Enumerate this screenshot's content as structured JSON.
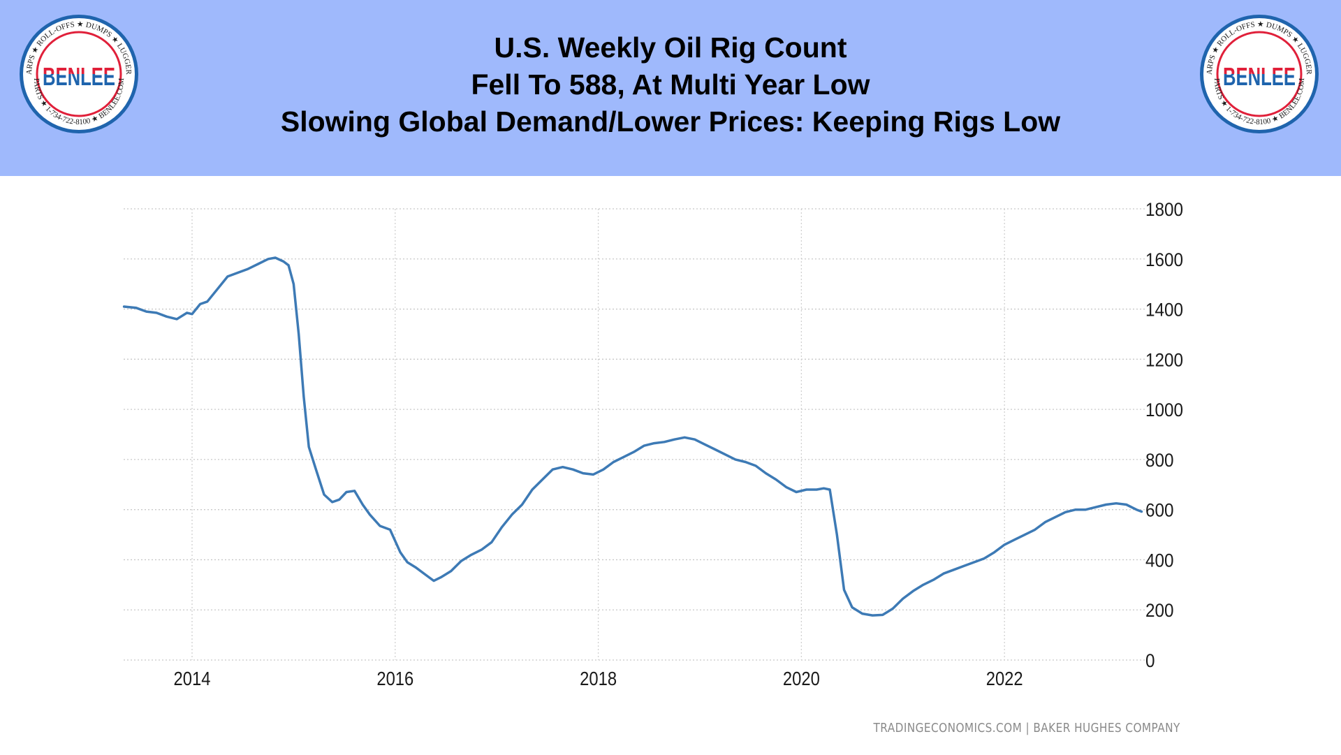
{
  "header": {
    "title_lines": [
      "U.S. Weekly Oil Rig Count",
      "Fell To 588, At Multi Year Low",
      "Slowing Global Demand/Lower Prices: Keeping Rigs Low"
    ],
    "background_color": "#9fb9fc"
  },
  "logo": {
    "brand": "BENLEE",
    "ring_text_top": "TARPS ★ ROLL-OFFS ★ DUMPS ★ LUGGERS",
    "ring_text_bottom": "PARTS ★ 1-734-722-8100 ★ BENLEE.COM",
    "colors": {
      "red": "#e0203a",
      "blue": "#1f64ad"
    }
  },
  "footer": {
    "source": "TRADINGECONOMICS.COM  |  BAKER HUGHES COMPANY"
  },
  "chart_data": {
    "type": "line",
    "title": "U.S. Weekly Oil Rig Count",
    "xlabel": "",
    "ylabel": "",
    "x_ticks": [
      "2014",
      "2016",
      "2018",
      "2020",
      "2022"
    ],
    "y_ticks": [
      "0",
      "200",
      "400",
      "600",
      "800",
      "1000",
      "1200",
      "1400",
      "1600",
      "1800"
    ],
    "xlim": [
      2013.33,
      2023.35
    ],
    "ylim": [
      0,
      1800
    ],
    "grid": true,
    "y_axis_position": "right",
    "line_color": "#3d7ab5",
    "series": [
      {
        "name": "Oil Rig Count",
        "x": [
          2013.33,
          2013.45,
          2013.55,
          2013.65,
          2013.75,
          2013.85,
          2013.95,
          2014.0,
          2014.08,
          2014.15,
          2014.25,
          2014.35,
          2014.45,
          2014.55,
          2014.65,
          2014.75,
          2014.82,
          2014.9,
          2014.95,
          2015.0,
          2015.05,
          2015.1,
          2015.15,
          2015.22,
          2015.3,
          2015.38,
          2015.45,
          2015.52,
          2015.6,
          2015.68,
          2015.75,
          2015.85,
          2015.95,
          2016.05,
          2016.12,
          2016.2,
          2016.3,
          2016.38,
          2016.45,
          2016.55,
          2016.65,
          2016.75,
          2016.85,
          2016.95,
          2017.05,
          2017.15,
          2017.25,
          2017.35,
          2017.45,
          2017.55,
          2017.65,
          2017.75,
          2017.85,
          2017.95,
          2018.05,
          2018.15,
          2018.25,
          2018.35,
          2018.45,
          2018.55,
          2018.65,
          2018.75,
          2018.85,
          2018.95,
          2019.05,
          2019.15,
          2019.25,
          2019.35,
          2019.45,
          2019.55,
          2019.65,
          2019.75,
          2019.85,
          2019.95,
          2020.05,
          2020.15,
          2020.22,
          2020.28,
          2020.35,
          2020.42,
          2020.5,
          2020.6,
          2020.7,
          2020.8,
          2020.9,
          2021.0,
          2021.1,
          2021.2,
          2021.3,
          2021.4,
          2021.5,
          2021.6,
          2021.7,
          2021.8,
          2021.9,
          2022.0,
          2022.1,
          2022.2,
          2022.3,
          2022.4,
          2022.5,
          2022.6,
          2022.7,
          2022.8,
          2022.9,
          2023.0,
          2023.1,
          2023.2,
          2023.3,
          2023.35
        ],
        "values": [
          1410,
          1405,
          1390,
          1385,
          1370,
          1360,
          1385,
          1380,
          1420,
          1430,
          1480,
          1530,
          1545,
          1560,
          1580,
          1600,
          1605,
          1590,
          1575,
          1500,
          1300,
          1050,
          850,
          760,
          660,
          630,
          640,
          670,
          675,
          620,
          580,
          535,
          520,
          430,
          390,
          370,
          340,
          316,
          330,
          355,
          395,
          420,
          440,
          470,
          530,
          580,
          620,
          680,
          720,
          760,
          770,
          760,
          745,
          740,
          760,
          790,
          810,
          830,
          855,
          865,
          870,
          880,
          888,
          880,
          860,
          840,
          820,
          800,
          790,
          775,
          745,
          720,
          690,
          670,
          680,
          680,
          685,
          680,
          500,
          280,
          210,
          185,
          178,
          180,
          205,
          245,
          275,
          300,
          320,
          345,
          360,
          375,
          390,
          405,
          430,
          460,
          480,
          500,
          520,
          550,
          570,
          590,
          600,
          600,
          610,
          620,
          625,
          620,
          600,
          592
        ]
      }
    ]
  }
}
